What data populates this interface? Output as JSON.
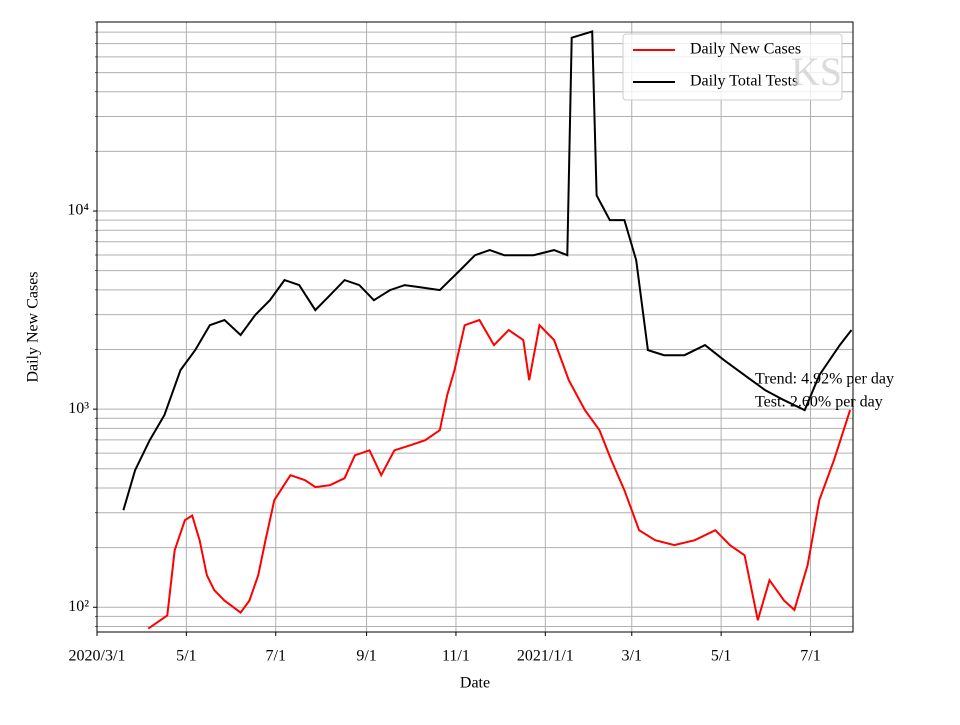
{
  "chart_data": {
    "type": "line",
    "yscale": "log",
    "grid": true,
    "legend": "upper right",
    "xlabel": "Date",
    "ylabel": "Daily New Cases",
    "xlim": [
      "2020-03-01",
      "2021-07-30"
    ],
    "xticks": [
      {
        "value": "2020-03-01",
        "label": "2020/3/1"
      },
      {
        "value": "2020-05-01",
        "label": "5/1"
      },
      {
        "value": "2020-07-01",
        "label": "7/1"
      },
      {
        "value": "2020-09-01",
        "label": "9/1"
      },
      {
        "value": "2020-11-01",
        "label": "11/1"
      },
      {
        "value": "2021-01-01",
        "label": "2021/1/1"
      },
      {
        "value": "2021-03-01",
        "label": "3/1"
      },
      {
        "value": "2021-05-01",
        "label": "5/1"
      },
      {
        "value": "2021-07-01",
        "label": "7/1"
      }
    ],
    "ylim": [
      75,
      90000
    ],
    "yticks": [
      {
        "value": 100,
        "label": "10²"
      },
      {
        "value": 1000,
        "label": "10³"
      },
      {
        "value": 10000,
        "label": "10⁴"
      }
    ],
    "yminorticks": [
      80,
      90,
      200,
      300,
      400,
      500,
      600,
      700,
      800,
      900,
      2000,
      3000,
      4000,
      5000,
      6000,
      7000,
      8000,
      9000,
      20000,
      30000,
      40000,
      50000,
      60000,
      70000,
      80000,
      90000
    ],
    "annotations": [
      "Trend: 4.92% per day",
      "Test: 2.60% per day"
    ],
    "watermark": "KS",
    "series": [
      {
        "name": "Daily New Cases",
        "color": "#ff0000",
        "x": [
          "2020-04-05",
          "2020-04-18",
          "2020-04-23",
          "2020-04-30",
          "2020-05-05",
          "2020-05-10",
          "2020-05-15",
          "2020-05-20",
          "2020-05-27",
          "2020-06-07",
          "2020-06-13",
          "2020-06-19",
          "2020-06-24",
          "2020-06-30",
          "2020-07-11",
          "2020-07-21",
          "2020-07-28",
          "2020-08-07",
          "2020-08-17",
          "2020-08-24",
          "2020-09-03",
          "2020-09-11",
          "2020-09-20",
          "2020-10-01",
          "2020-10-11",
          "2020-10-21",
          "2020-10-26",
          "2020-10-31",
          "2020-11-07",
          "2020-11-17",
          "2020-11-27",
          "2020-12-07",
          "2020-12-17",
          "2020-12-21",
          "2020-12-28",
          "2021-01-07",
          "2021-01-17",
          "2021-01-28",
          "2021-02-07",
          "2021-02-15",
          "2021-02-24",
          "2021-03-06",
          "2021-03-17",
          "2021-03-30",
          "2021-04-13",
          "2021-04-27",
          "2021-05-07",
          "2021-05-17",
          "2021-05-26",
          "2021-06-03",
          "2021-06-13",
          "2021-06-20",
          "2021-06-29",
          "2021-07-07",
          "2021-07-17",
          "2021-07-28"
        ],
        "values": [
          78,
          91,
          194,
          275,
          290,
          218,
          145,
          122,
          108,
          94,
          108,
          145,
          218,
          347,
          464,
          438,
          404,
          413,
          448,
          585,
          620,
          464,
          620,
          658,
          697,
          783,
          1177,
          1574,
          2654,
          2818,
          2104,
          2510,
          2232,
          1400,
          2654,
          2232,
          1400,
          989,
          783,
          553,
          390,
          245,
          218,
          206,
          218,
          245,
          206,
          183,
          86,
          137,
          108,
          97,
          163,
          347,
          553,
          989
        ]
      },
      {
        "name": "Daily Total Tests",
        "color": "#000000",
        "x": [
          "2020-03-19",
          "2020-03-27",
          "2020-04-06",
          "2020-04-16",
          "2020-04-27",
          "2020-05-07",
          "2020-05-17",
          "2020-05-27",
          "2020-06-07",
          "2020-06-17",
          "2020-06-27",
          "2020-07-07",
          "2020-07-17",
          "2020-07-28",
          "2020-08-07",
          "2020-08-17",
          "2020-08-27",
          "2020-09-06",
          "2020-09-17",
          "2020-09-27",
          "2020-10-07",
          "2020-10-21",
          "2020-11-04",
          "2020-11-14",
          "2020-11-24",
          "2020-12-04",
          "2020-12-14",
          "2020-12-24",
          "2021-01-07",
          "2021-01-16",
          "2021-01-19",
          "2021-02-02",
          "2021-02-05",
          "2021-02-14",
          "2021-02-24",
          "2021-03-04",
          "2021-03-12",
          "2021-03-23",
          "2021-04-06",
          "2021-04-20",
          "2021-05-03",
          "2021-05-17",
          "2021-05-31",
          "2021-06-13",
          "2021-06-27",
          "2021-07-07",
          "2021-07-21",
          "2021-07-29"
        ],
        "values": [
          309,
          492,
          697,
          933,
          1574,
          1986,
          2654,
          2818,
          2367,
          2988,
          3548,
          4480,
          4227,
          3162,
          3760,
          4480,
          4227,
          3548,
          3990,
          4227,
          4130,
          3990,
          5040,
          5985,
          6350,
          5985,
          5985,
          5985,
          6350,
          5985,
          75000,
          80600,
          12000,
          9000,
          9000,
          5650,
          1986,
          1873,
          1873,
          2104,
          1766,
          1484,
          1248,
          1110,
          989,
          1484,
          2104,
          2510
        ]
      }
    ]
  }
}
